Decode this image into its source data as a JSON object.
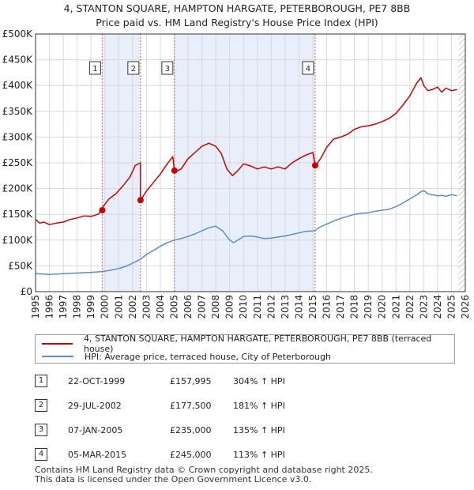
{
  "title_line1": "4, STANTON SQUARE, HAMPTON HARGATE, PETERBOROUGH, PE7 8BB",
  "title_line2": "Price paid vs. HM Land Registry's House Price Index (HPI)",
  "legend": {
    "property": "4, STANTON SQUARE, HAMPTON HARGATE, PETERBOROUGH, PE7 8BB (terraced house)",
    "hpi": "HPI: Average price, terraced house, City of Peterborough"
  },
  "sales": [
    {
      "num": "1",
      "date": "22-OCT-1999",
      "price": "£157,995",
      "hpi": "304% ↑ HPI"
    },
    {
      "num": "2",
      "date": "29-JUL-2002",
      "price": "£177,500",
      "hpi": "181% ↑ HPI"
    },
    {
      "num": "3",
      "date": "07-JAN-2005",
      "price": "£235,000",
      "hpi": "135% ↑ HPI"
    },
    {
      "num": "4",
      "date": "05-MAR-2015",
      "price": "£245,000",
      "hpi": "113% ↑ HPI"
    }
  ],
  "footer_line1": "Contains HM Land Registry data © Crown copyright and database right 2025.",
  "footer_line2": "This data is licensed under the Open Government Licence v3.0.",
  "colors": {
    "property": "#cc0000",
    "hpi": "#5b8fcc",
    "shade": "#e8eefa",
    "grid": "#d8d8d8"
  },
  "chart_data": {
    "type": "line",
    "title": "4, STANTON SQUARE, HAMPTON HARGATE, PETERBOROUGH, PE7 8BB — Price paid vs. HM Land Registry's House Price Index (HPI)",
    "xlabel": "",
    "ylabel": "",
    "xlim": [
      1995,
      2026
    ],
    "ylim": [
      0,
      500000
    ],
    "x_ticks": [
      "1995",
      "1996",
      "1997",
      "1998",
      "1999",
      "2000",
      "2001",
      "2002",
      "2003",
      "2004",
      "2005",
      "2006",
      "2007",
      "2008",
      "2009",
      "2010",
      "2011",
      "2012",
      "2013",
      "2014",
      "2015",
      "2016",
      "2017",
      "2018",
      "2019",
      "2020",
      "2021",
      "2022",
      "2023",
      "2024",
      "2025",
      "2026"
    ],
    "y_ticks": [
      {
        "value": 0,
        "label": "£0"
      },
      {
        "value": 50000,
        "label": "£50K"
      },
      {
        "value": 100000,
        "label": "£100K"
      },
      {
        "value": 150000,
        "label": "£150K"
      },
      {
        "value": 200000,
        "label": "£200K"
      },
      {
        "value": 250000,
        "label": "£250K"
      },
      {
        "value": 300000,
        "label": "£300K"
      },
      {
        "value": 350000,
        "label": "£350K"
      },
      {
        "value": 400000,
        "label": "£400K"
      },
      {
        "value": 450000,
        "label": "£450K"
      },
      {
        "value": 500000,
        "label": "£500K"
      }
    ],
    "shaded_ranges": [
      [
        1999.81,
        2002.57
      ],
      [
        2005.02,
        2015.17
      ]
    ],
    "hatched_from": 2025.5,
    "sales": [
      {
        "label": "1",
        "x": 1999.81,
        "y": 157995
      },
      {
        "label": "2",
        "x": 2002.57,
        "y": 177500
      },
      {
        "label": "3",
        "x": 2005.02,
        "y": 235000
      },
      {
        "label": "4",
        "x": 2015.17,
        "y": 245000
      }
    ],
    "series": [
      {
        "name": "4, STANTON SQUARE, HAMPTON HARGATE, PETERBOROUGH, PE7 8BB (terraced house)",
        "color": "#cc0000",
        "x": [
          1995.0,
          1995.3,
          1995.6,
          1996.0,
          1996.5,
          1997.0,
          1997.5,
          1998.0,
          1998.5,
          1999.0,
          1999.5,
          1999.81,
          1999.82,
          2000.3,
          2000.8,
          2001.3,
          2001.8,
          2002.2,
          2002.56,
          2002.57,
          2003.0,
          2003.5,
          2004.0,
          2004.5,
          2004.9,
          2005.02,
          2005.03,
          2005.5,
          2006.0,
          2006.5,
          2007.0,
          2007.5,
          2008.0,
          2008.4,
          2008.8,
          2009.2,
          2009.6,
          2010.0,
          2010.5,
          2011.0,
          2011.5,
          2012.0,
          2012.5,
          2013.0,
          2013.5,
          2014.0,
          2014.5,
          2015.0,
          2015.17,
          2015.18,
          2015.6,
          2016.0,
          2016.5,
          2017.0,
          2017.5,
          2018.0,
          2018.5,
          2019.0,
          2019.5,
          2020.0,
          2020.5,
          2021.0,
          2021.5,
          2022.0,
          2022.5,
          2022.8,
          2023.0,
          2023.3,
          2023.6,
          2024.0,
          2024.3,
          2024.6,
          2025.0,
          2025.4
        ],
        "y": [
          140000,
          133000,
          135000,
          130000,
          133000,
          135000,
          140000,
          143000,
          147000,
          146000,
          150000,
          157995,
          163000,
          180000,
          190000,
          205000,
          222000,
          245000,
          250000,
          177500,
          195000,
          212000,
          228000,
          248000,
          262000,
          235000,
          232000,
          238000,
          258000,
          270000,
          282000,
          288000,
          282000,
          268000,
          238000,
          225000,
          235000,
          248000,
          244000,
          238000,
          242000,
          238000,
          242000,
          238000,
          250000,
          258000,
          265000,
          270000,
          245000,
          243000,
          260000,
          280000,
          296000,
          300000,
          305000,
          315000,
          320000,
          322000,
          325000,
          330000,
          336000,
          346000,
          362000,
          380000,
          405000,
          415000,
          400000,
          390000,
          392000,
          397000,
          387000,
          395000,
          390000,
          392000
        ]
      },
      {
        "name": "HPI: Average price, terraced house, City of Peterborough",
        "color": "#5b8fcc",
        "x": [
          1995.0,
          1996.0,
          1997.0,
          1998.0,
          1999.0,
          1999.81,
          2000.5,
          2001.0,
          2001.5,
          2002.0,
          2002.57,
          2003.0,
          2003.5,
          2004.0,
          2004.5,
          2005.0,
          2005.5,
          2006.0,
          2006.5,
          2007.0,
          2007.5,
          2008.0,
          2008.5,
          2009.0,
          2009.3,
          2009.7,
          2010.0,
          2010.5,
          2011.0,
          2011.5,
          2012.0,
          2012.5,
          2013.0,
          2013.5,
          2014.0,
          2014.5,
          2015.0,
          2015.17,
          2015.5,
          2016.0,
          2016.5,
          2017.0,
          2017.5,
          2018.0,
          2018.5,
          2019.0,
          2019.5,
          2020.0,
          2020.5,
          2021.0,
          2021.5,
          2022.0,
          2022.5,
          2022.8,
          2023.0,
          2023.3,
          2023.6,
          2024.0,
          2024.3,
          2024.6,
          2025.0,
          2025.4
        ],
        "y": [
          35000,
          33500,
          35000,
          36000,
          37500,
          39000,
          42000,
          45000,
          49000,
          55000,
          63000,
          72000,
          80000,
          88000,
          95000,
          100000,
          103000,
          107000,
          112000,
          118000,
          124000,
          127000,
          118000,
          100000,
          95000,
          102000,
          107000,
          108000,
          106000,
          103000,
          104000,
          106000,
          108000,
          111000,
          114000,
          117000,
          118000,
          118500,
          125000,
          131000,
          137000,
          142000,
          146000,
          150000,
          152000,
          153000,
          156000,
          158000,
          160000,
          165000,
          172000,
          180000,
          188000,
          194000,
          196000,
          190000,
          188000,
          186000,
          187000,
          185000,
          188000,
          186000
        ]
      }
    ]
  }
}
